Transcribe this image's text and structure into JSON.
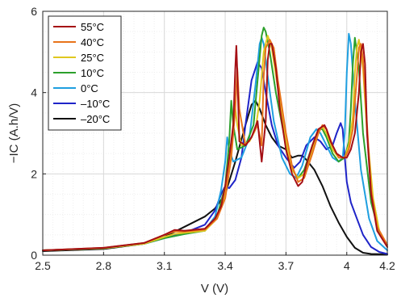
{
  "chart_data": {
    "type": "line",
    "xlabel": "V (V)",
    "ylabel": "−IC (A.h/V)",
    "xlim": [
      2.5,
      4.2
    ],
    "ylim": [
      0,
      6
    ],
    "xticks": [
      2.5,
      2.8,
      3.1,
      3.4,
      3.7,
      4.0,
      4.2
    ],
    "xtick_labels": [
      "2.5",
      "2.8",
      "3.1",
      "3.4",
      "3.7",
      "4",
      "4.2"
    ],
    "yticks": [
      0,
      2,
      4,
      6
    ],
    "ytick_labels": [
      "0",
      "2",
      "4",
      "6"
    ],
    "grid": true,
    "minor_grid": true,
    "legend_position": "top-left",
    "series": [
      {
        "name": "55°C",
        "color": "#a50f15",
        "x": [
          2.5,
          2.8,
          3.0,
          3.1,
          3.15,
          3.2,
          3.3,
          3.35,
          3.38,
          3.4,
          3.42,
          3.44,
          3.45,
          3.455,
          3.46,
          3.47,
          3.5,
          3.53,
          3.56,
          3.58,
          3.6,
          3.61,
          3.62,
          3.63,
          3.65,
          3.67,
          3.7,
          3.73,
          3.76,
          3.78,
          3.8,
          3.83,
          3.86,
          3.89,
          3.9,
          3.92,
          3.95,
          3.98,
          4.0,
          4.02,
          4.04,
          4.06,
          4.07,
          4.08,
          4.09,
          4.1,
          4.12,
          4.15,
          4.2
        ],
        "y": [
          0.12,
          0.18,
          0.3,
          0.5,
          0.62,
          0.6,
          0.65,
          0.9,
          1.2,
          1.7,
          2.4,
          3.2,
          4.6,
          5.15,
          4.5,
          2.8,
          2.7,
          2.9,
          3.3,
          2.3,
          3.3,
          4.8,
          5.2,
          5.2,
          4.6,
          3.6,
          2.6,
          2.0,
          1.7,
          1.8,
          2.2,
          2.7,
          3.1,
          3.2,
          3.1,
          2.8,
          2.5,
          2.4,
          2.4,
          2.6,
          3.0,
          4.0,
          5.0,
          5.2,
          4.7,
          3.0,
          1.5,
          0.6,
          0.2
        ]
      },
      {
        "name": "40°C",
        "color": "#e8731a",
        "x": [
          2.5,
          2.8,
          3.0,
          3.1,
          3.15,
          3.2,
          3.3,
          3.36,
          3.4,
          3.43,
          3.45,
          3.46,
          3.47,
          3.5,
          3.53,
          3.56,
          3.58,
          3.59,
          3.6,
          3.62,
          3.64,
          3.66,
          3.7,
          3.73,
          3.76,
          3.79,
          3.83,
          3.86,
          3.88,
          3.9,
          3.93,
          3.96,
          3.99,
          4.01,
          4.03,
          4.05,
          4.06,
          4.07,
          4.08,
          4.1,
          4.12,
          4.15,
          4.2
        ],
        "y": [
          0.12,
          0.18,
          0.3,
          0.5,
          0.58,
          0.58,
          0.63,
          0.9,
          1.4,
          2.4,
          3.6,
          4.6,
          3.6,
          2.7,
          2.9,
          3.2,
          2.7,
          4.4,
          5.1,
          5.3,
          5.1,
          4.3,
          3.0,
          2.2,
          1.8,
          1.9,
          2.5,
          3.0,
          3.2,
          3.1,
          2.7,
          2.4,
          2.4,
          2.6,
          3.1,
          4.4,
          5.1,
          5.2,
          4.8,
          3.2,
          1.6,
          0.7,
          0.25
        ]
      },
      {
        "name": "25°C",
        "color": "#e0c81f",
        "x": [
          2.5,
          2.8,
          3.0,
          3.1,
          3.15,
          3.2,
          3.3,
          3.36,
          3.4,
          3.43,
          3.44,
          3.45,
          3.46,
          3.48,
          3.52,
          3.55,
          3.57,
          3.59,
          3.61,
          3.63,
          3.66,
          3.7,
          3.73,
          3.76,
          3.79,
          3.83,
          3.86,
          3.88,
          3.9,
          3.93,
          3.96,
          3.99,
          4.01,
          4.03,
          4.04,
          4.05,
          4.06,
          4.08,
          4.1,
          4.13,
          4.16,
          4.2
        ],
        "y": [
          0.12,
          0.17,
          0.28,
          0.45,
          0.52,
          0.55,
          0.6,
          0.9,
          1.5,
          2.6,
          3.3,
          3.6,
          3.2,
          2.7,
          2.8,
          3.1,
          3.8,
          5.0,
          5.4,
          5.1,
          4.1,
          2.8,
          2.1,
          1.9,
          2.0,
          2.6,
          3.05,
          3.15,
          3.0,
          2.6,
          2.4,
          2.4,
          2.7,
          3.4,
          4.5,
          5.1,
          5.3,
          4.6,
          3.0,
          1.4,
          0.6,
          0.25
        ]
      },
      {
        "name": "10°C",
        "color": "#2ca02c",
        "x": [
          2.5,
          2.8,
          3.0,
          3.1,
          3.2,
          3.3,
          3.36,
          3.4,
          3.42,
          3.43,
          3.44,
          3.46,
          3.5,
          3.54,
          3.56,
          3.58,
          3.59,
          3.6,
          3.62,
          3.65,
          3.7,
          3.73,
          3.76,
          3.79,
          3.83,
          3.86,
          3.88,
          3.9,
          3.93,
          3.96,
          3.99,
          4.01,
          4.02,
          4.03,
          4.04,
          4.06,
          4.08,
          4.12,
          4.16,
          4.2
        ],
        "y": [
          0.12,
          0.17,
          0.28,
          0.42,
          0.52,
          0.6,
          0.95,
          1.7,
          2.8,
          3.8,
          3.2,
          2.6,
          2.7,
          3.2,
          4.3,
          5.4,
          5.6,
          5.5,
          5.0,
          4.0,
          2.7,
          2.1,
          1.9,
          2.1,
          2.7,
          3.1,
          3.1,
          2.9,
          2.5,
          2.3,
          2.4,
          2.8,
          3.6,
          4.7,
          5.35,
          4.6,
          3.0,
          1.3,
          0.55,
          0.2
        ]
      },
      {
        "name": "0°C",
        "color": "#1f9fe0",
        "x": [
          2.5,
          2.8,
          3.0,
          3.1,
          3.2,
          3.3,
          3.35,
          3.38,
          3.4,
          3.41,
          3.42,
          3.44,
          3.48,
          3.52,
          3.55,
          3.57,
          3.58,
          3.59,
          3.61,
          3.64,
          3.68,
          3.72,
          3.75,
          3.78,
          3.82,
          3.85,
          3.87,
          3.9,
          3.93,
          3.96,
          3.98,
          3.99,
          4.0,
          4.01,
          4.02,
          4.04,
          4.07,
          4.11,
          4.15,
          4.2
        ],
        "y": [
          0.12,
          0.17,
          0.28,
          0.42,
          0.52,
          0.62,
          0.95,
          1.6,
          2.3,
          2.9,
          2.6,
          2.3,
          2.4,
          2.9,
          4.2,
          5.2,
          5.35,
          5.2,
          4.4,
          3.3,
          2.4,
          2.0,
          1.9,
          2.2,
          2.9,
          3.1,
          3.0,
          2.7,
          2.4,
          2.3,
          2.4,
          3.0,
          4.5,
          5.45,
          5.2,
          3.8,
          2.1,
          0.9,
          0.35,
          0.12
        ]
      },
      {
        "name": "–10°C",
        "color": "#1f24c8",
        "x": [
          2.5,
          2.8,
          3.0,
          3.1,
          3.2,
          3.3,
          3.35,
          3.38,
          3.4,
          3.42,
          3.45,
          3.48,
          3.5,
          3.53,
          3.56,
          3.58,
          3.6,
          3.63,
          3.66,
          3.7,
          3.74,
          3.77,
          3.8,
          3.84,
          3.87,
          3.9,
          3.93,
          3.95,
          3.97,
          3.98,
          3.99,
          4.0,
          4.02,
          4.05,
          4.08,
          4.12,
          4.16,
          4.2
        ],
        "y": [
          0.12,
          0.17,
          0.28,
          0.42,
          0.55,
          0.75,
          1.1,
          1.5,
          1.7,
          1.65,
          1.85,
          2.4,
          3.2,
          4.3,
          4.75,
          4.6,
          4.0,
          3.2,
          2.7,
          2.4,
          2.15,
          2.3,
          2.7,
          2.9,
          2.8,
          2.6,
          2.7,
          3.0,
          3.25,
          3.1,
          2.4,
          1.8,
          1.3,
          0.9,
          0.5,
          0.2,
          0.08,
          0.03
        ]
      },
      {
        "name": "–20°C",
        "color": "#111111",
        "x": [
          2.5,
          2.8,
          3.0,
          3.1,
          3.2,
          3.3,
          3.35,
          3.4,
          3.45,
          3.5,
          3.53,
          3.55,
          3.57,
          3.6,
          3.63,
          3.66,
          3.7,
          3.73,
          3.76,
          3.78,
          3.8,
          3.84,
          3.88,
          3.92,
          3.96,
          4.0,
          4.04,
          4.08,
          4.12,
          4.2
        ],
        "y": [
          0.1,
          0.15,
          0.28,
          0.45,
          0.7,
          0.95,
          1.15,
          1.5,
          2.3,
          3.2,
          3.7,
          3.8,
          3.6,
          3.2,
          2.9,
          2.7,
          2.6,
          2.4,
          2.45,
          2.45,
          2.35,
          2.1,
          1.7,
          1.2,
          0.8,
          0.45,
          0.18,
          0.06,
          0.03,
          0.02
        ]
      }
    ]
  }
}
